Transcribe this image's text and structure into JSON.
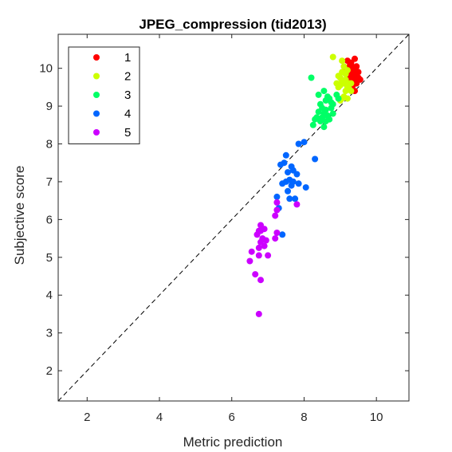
{
  "chart_data": {
    "type": "scatter",
    "title": "JPEG_compression (tid2013)",
    "xlabel": "Metric prediction",
    "ylabel": "Subjective score",
    "xlim": [
      1.2,
      10.9
    ],
    "ylim": [
      1.2,
      10.9
    ],
    "xticks": [
      2,
      4,
      6,
      8,
      10
    ],
    "yticks": [
      2,
      3,
      4,
      5,
      6,
      7,
      8,
      9,
      10
    ],
    "grid": false,
    "legend_position": "top-left",
    "reference_line": {
      "style": "dashed",
      "from": [
        1.2,
        1.2
      ],
      "to": [
        10.9,
        10.9
      ]
    },
    "series": [
      {
        "name": "1",
        "color": "#ff0000",
        "points": [
          [
            9.2,
            10.2
          ],
          [
            9.3,
            10.1
          ],
          [
            9.4,
            10.25
          ],
          [
            9.25,
            10.05
          ],
          [
            9.35,
            10.0
          ],
          [
            9.4,
            9.95
          ],
          [
            9.3,
            9.9
          ],
          [
            9.45,
            9.85
          ],
          [
            9.5,
            9.75
          ],
          [
            9.35,
            9.8
          ],
          [
            9.3,
            9.7
          ],
          [
            9.45,
            9.6
          ],
          [
            9.4,
            9.65
          ],
          [
            9.25,
            9.85
          ],
          [
            9.35,
            9.55
          ],
          [
            9.4,
            9.4
          ],
          [
            9.15,
            10.0
          ],
          [
            9.5,
            9.9
          ],
          [
            9.2,
            9.95
          ],
          [
            9.3,
            10.15
          ],
          [
            9.45,
            10.05
          ],
          [
            9.4,
            9.8
          ],
          [
            9.55,
            9.7
          ],
          [
            9.25,
            9.75
          ]
        ]
      },
      {
        "name": "2",
        "color": "#ccff00",
        "points": [
          [
            8.8,
            10.3
          ],
          [
            9.05,
            10.2
          ],
          [
            9.1,
            10.05
          ],
          [
            9.2,
            9.95
          ],
          [
            9.15,
            9.85
          ],
          [
            9.0,
            9.75
          ],
          [
            9.05,
            9.65
          ],
          [
            9.15,
            9.7
          ],
          [
            8.9,
            9.6
          ],
          [
            9.0,
            9.55
          ],
          [
            9.1,
            9.6
          ],
          [
            8.95,
            9.5
          ],
          [
            9.2,
            9.5
          ],
          [
            9.15,
            9.4
          ],
          [
            9.25,
            9.45
          ],
          [
            9.3,
            9.4
          ],
          [
            9.25,
            9.6
          ],
          [
            9.1,
            9.25
          ],
          [
            9.05,
            9.2
          ],
          [
            9.0,
            9.15
          ],
          [
            9.2,
            9.2
          ],
          [
            8.95,
            9.8
          ],
          [
            9.05,
            9.9
          ],
          [
            9.3,
            9.6
          ]
        ]
      },
      {
        "name": "3",
        "color": "#00ff66",
        "points": [
          [
            8.2,
            9.75
          ],
          [
            8.55,
            9.4
          ],
          [
            8.4,
            9.3
          ],
          [
            8.65,
            9.25
          ],
          [
            8.7,
            9.2
          ],
          [
            8.75,
            9.1
          ],
          [
            8.6,
            9.15
          ],
          [
            8.45,
            9.05
          ],
          [
            8.5,
            8.95
          ],
          [
            8.6,
            8.9
          ],
          [
            8.4,
            8.85
          ],
          [
            8.55,
            8.8
          ],
          [
            8.65,
            8.75
          ],
          [
            8.5,
            8.7
          ],
          [
            8.3,
            8.65
          ],
          [
            8.45,
            8.6
          ],
          [
            8.25,
            8.5
          ],
          [
            8.55,
            8.45
          ],
          [
            8.6,
            8.6
          ],
          [
            8.35,
            8.7
          ],
          [
            8.75,
            8.95
          ],
          [
            8.8,
            9.05
          ],
          [
            8.7,
            8.65
          ],
          [
            8.9,
            9.3
          ],
          [
            8.95,
            9.2
          ],
          [
            8.8,
            8.8
          ]
        ]
      },
      {
        "name": "4",
        "color": "#0066ff",
        "points": [
          [
            7.85,
            8.0
          ],
          [
            8.0,
            8.05
          ],
          [
            8.3,
            7.6
          ],
          [
            7.5,
            7.7
          ],
          [
            7.45,
            7.5
          ],
          [
            7.35,
            7.45
          ],
          [
            7.65,
            7.4
          ],
          [
            7.55,
            7.25
          ],
          [
            7.7,
            7.3
          ],
          [
            7.8,
            7.2
          ],
          [
            7.6,
            7.05
          ],
          [
            7.5,
            7.0
          ],
          [
            7.7,
            7.0
          ],
          [
            7.4,
            6.95
          ],
          [
            7.85,
            6.95
          ],
          [
            7.65,
            6.9
          ],
          [
            8.05,
            6.85
          ],
          [
            7.55,
            6.75
          ],
          [
            7.3,
            6.3
          ],
          [
            7.25,
            6.6
          ],
          [
            7.6,
            6.55
          ],
          [
            7.75,
            6.55
          ],
          [
            7.4,
            5.6
          ]
        ]
      },
      {
        "name": "5",
        "color": "#cc00ff",
        "points": [
          [
            7.25,
            6.45
          ],
          [
            7.8,
            6.4
          ],
          [
            7.25,
            6.25
          ],
          [
            7.2,
            6.1
          ],
          [
            6.8,
            5.85
          ],
          [
            6.75,
            5.7
          ],
          [
            6.9,
            5.75
          ],
          [
            6.7,
            5.6
          ],
          [
            6.85,
            5.5
          ],
          [
            6.95,
            5.45
          ],
          [
            7.25,
            5.65
          ],
          [
            7.2,
            5.5
          ],
          [
            6.8,
            5.4
          ],
          [
            6.9,
            5.3
          ],
          [
            6.75,
            5.25
          ],
          [
            6.55,
            5.15
          ],
          [
            6.75,
            5.05
          ],
          [
            7.0,
            5.05
          ],
          [
            6.5,
            4.9
          ],
          [
            6.65,
            4.55
          ],
          [
            6.8,
            4.4
          ],
          [
            6.75,
            3.5
          ],
          [
            6.8,
            5.7
          ]
        ]
      }
    ]
  }
}
